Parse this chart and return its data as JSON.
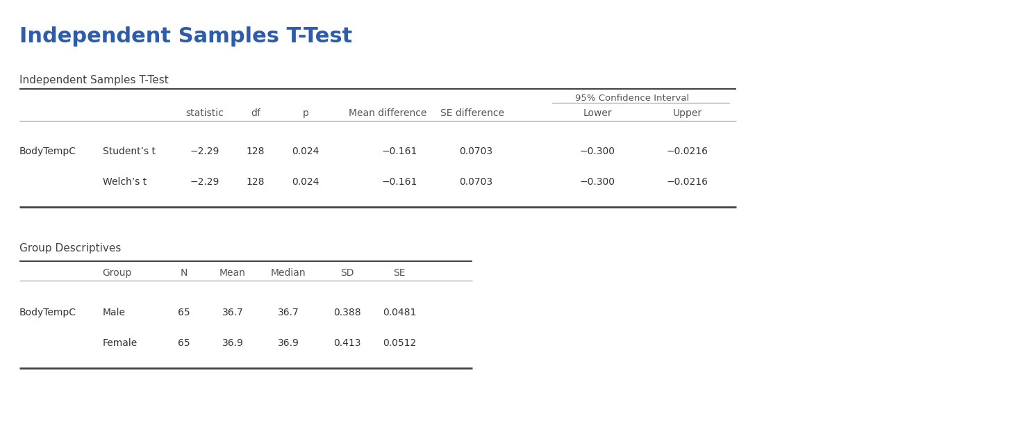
{
  "main_title": "Independent Samples T-Test",
  "main_title_color": "#2e5ca8",
  "background_color": "#ffffff",
  "table1_section_label": "Independent Samples T-Test",
  "table1_span_header": "95% Confidence Interval",
  "table1_col_headers": [
    "statistic",
    "df",
    "p",
    "Mean difference",
    "SE difference",
    "Lower",
    "Upper"
  ],
  "table1_rows": [
    [
      "BodyTempC",
      "Student’s t",
      "−2.29",
      "128",
      "0.024",
      "−0.161",
      "0.0703",
      "−0.300",
      "−0.0216"
    ],
    [
      "",
      "Welch’s t",
      "−2.29",
      "128",
      "0.024",
      "−0.161",
      "0.0703",
      "−0.300",
      "−0.0216"
    ]
  ],
  "table2_section_label": "Group Descriptives",
  "table2_col_headers": [
    "Group",
    "N",
    "Mean",
    "Median",
    "SD",
    "SE"
  ],
  "table2_rows": [
    [
      "BodyTempC",
      "Male",
      "65",
      "36.7",
      "36.7",
      "0.388",
      "0.0481"
    ],
    [
      "",
      "Female",
      "65",
      "36.9",
      "36.9",
      "0.413",
      "0.0512"
    ]
  ],
  "text_color": "#333333",
  "header_color": "#555555",
  "section_label_color": "#444444",
  "line_color": "#aaaaaa",
  "thick_line_color": "#444444",
  "fig_width": 14.7,
  "fig_height": 6.32,
  "dpi": 100
}
